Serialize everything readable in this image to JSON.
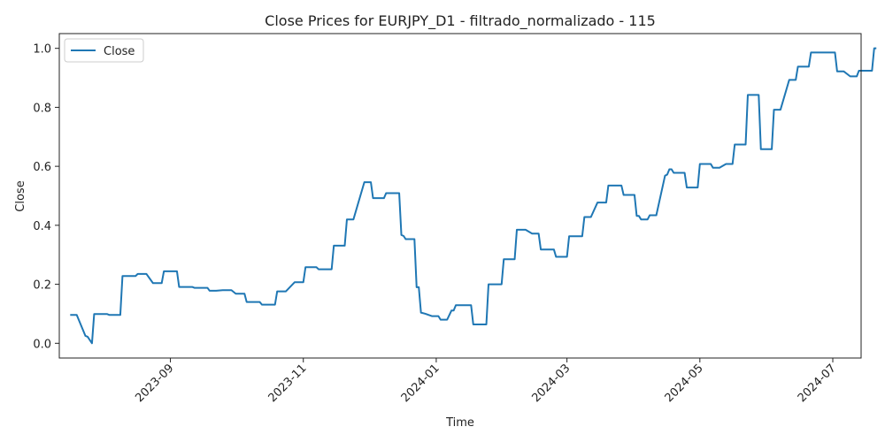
{
  "chart_data": {
    "type": "line",
    "title": "Close Prices for EURJPY_D1 - filtrado_normalizado - 115",
    "xlabel": "Time",
    "ylabel": "Close",
    "xlim": [
      "2023-07-12",
      "2024-07-14"
    ],
    "ylim": [
      -0.05,
      1.05
    ],
    "x_ticks": [
      "2023-09",
      "2023-11",
      "2024-01",
      "2024-03",
      "2024-05",
      "2024-07"
    ],
    "y_ticks": [
      "0.0",
      "0.2",
      "0.4",
      "0.6",
      "0.8",
      "1.0"
    ],
    "grid": false,
    "legend": {
      "placement": "top-left",
      "entries": [
        "Close"
      ]
    },
    "colors": {
      "series": "#1f77b4"
    },
    "series": [
      {
        "name": "Close",
        "points": [
          [
            "2023-07-17",
            0.096
          ],
          [
            "2023-07-20",
            0.096
          ],
          [
            "2023-07-24",
            0.025
          ],
          [
            "2023-07-25",
            0.022
          ],
          [
            "2023-07-27",
            0.0
          ],
          [
            "2023-07-28",
            0.099
          ],
          [
            "2023-08-03",
            0.099
          ],
          [
            "2023-08-04",
            0.096
          ],
          [
            "2023-08-09",
            0.096
          ],
          [
            "2023-08-10",
            0.228
          ],
          [
            "2023-08-16",
            0.228
          ],
          [
            "2023-08-17",
            0.235
          ],
          [
            "2023-08-21",
            0.235
          ],
          [
            "2023-08-24",
            0.204
          ],
          [
            "2023-08-28",
            0.204
          ],
          [
            "2023-08-29",
            0.244
          ],
          [
            "2023-09-04",
            0.244
          ],
          [
            "2023-09-05",
            0.191
          ],
          [
            "2023-09-11",
            0.191
          ],
          [
            "2023-09-12",
            0.188
          ],
          [
            "2023-09-18",
            0.188
          ],
          [
            "2023-09-19",
            0.178
          ],
          [
            "2023-09-22",
            0.178
          ],
          [
            "2023-09-25",
            0.18
          ],
          [
            "2023-09-29",
            0.18
          ],
          [
            "2023-10-01",
            0.168
          ],
          [
            "2023-10-05",
            0.168
          ],
          [
            "2023-10-06",
            0.14
          ],
          [
            "2023-10-12",
            0.14
          ],
          [
            "2023-10-13",
            0.131
          ],
          [
            "2023-10-19",
            0.131
          ],
          [
            "2023-10-20",
            0.176
          ],
          [
            "2023-10-24",
            0.176
          ],
          [
            "2023-10-28",
            0.207
          ],
          [
            "2023-11-01",
            0.207
          ],
          [
            "2023-11-02",
            0.258
          ],
          [
            "2023-11-07",
            0.258
          ],
          [
            "2023-11-08",
            0.251
          ],
          [
            "2023-11-14",
            0.251
          ],
          [
            "2023-11-15",
            0.331
          ],
          [
            "2023-11-20",
            0.331
          ],
          [
            "2023-11-21",
            0.42
          ],
          [
            "2023-11-24",
            0.42
          ],
          [
            "2023-11-29",
            0.546
          ],
          [
            "2023-12-02",
            0.546
          ],
          [
            "2023-12-03",
            0.492
          ],
          [
            "2023-12-08",
            0.492
          ],
          [
            "2023-12-09",
            0.509
          ],
          [
            "2023-12-15",
            0.509
          ],
          [
            "2023-12-16",
            0.367
          ],
          [
            "2023-12-17",
            0.364
          ],
          [
            "2023-12-18",
            0.353
          ],
          [
            "2023-12-22",
            0.353
          ],
          [
            "2023-12-23",
            0.19
          ],
          [
            "2023-12-24",
            0.19
          ],
          [
            "2023-12-25",
            0.104
          ],
          [
            "2023-12-27",
            0.1
          ],
          [
            "2023-12-30",
            0.092
          ],
          [
            "2024-01-02",
            0.092
          ],
          [
            "2024-01-03",
            0.08
          ],
          [
            "2024-01-06",
            0.08
          ],
          [
            "2024-01-08",
            0.111
          ],
          [
            "2024-01-09",
            0.111
          ],
          [
            "2024-01-10",
            0.129
          ],
          [
            "2024-01-17",
            0.129
          ],
          [
            "2024-01-18",
            0.064
          ],
          [
            "2024-01-24",
            0.064
          ],
          [
            "2024-01-25",
            0.2
          ],
          [
            "2024-01-31",
            0.2
          ],
          [
            "2024-02-01",
            0.285
          ],
          [
            "2024-02-06",
            0.285
          ],
          [
            "2024-02-07",
            0.385
          ],
          [
            "2024-02-11",
            0.385
          ],
          [
            "2024-02-14",
            0.372
          ],
          [
            "2024-02-17",
            0.372
          ],
          [
            "2024-02-18",
            0.318
          ],
          [
            "2024-02-24",
            0.318
          ],
          [
            "2024-02-25",
            0.293
          ],
          [
            "2024-03-01",
            0.293
          ],
          [
            "2024-03-02",
            0.363
          ],
          [
            "2024-03-08",
            0.363
          ],
          [
            "2024-03-09",
            0.428
          ],
          [
            "2024-03-12",
            0.428
          ],
          [
            "2024-03-15",
            0.477
          ],
          [
            "2024-03-19",
            0.477
          ],
          [
            "2024-03-20",
            0.535
          ],
          [
            "2024-03-26",
            0.535
          ],
          [
            "2024-03-27",
            0.503
          ],
          [
            "2024-04-01",
            0.503
          ],
          [
            "2024-04-02",
            0.432
          ],
          [
            "2024-04-03",
            0.432
          ],
          [
            "2024-04-04",
            0.42
          ],
          [
            "2024-04-07",
            0.42
          ],
          [
            "2024-04-08",
            0.434
          ],
          [
            "2024-04-11",
            0.434
          ],
          [
            "2024-04-15",
            0.568
          ],
          [
            "2024-04-16",
            0.572
          ],
          [
            "2024-04-17",
            0.59
          ],
          [
            "2024-04-18",
            0.59
          ],
          [
            "2024-04-19",
            0.578
          ],
          [
            "2024-04-24",
            0.578
          ],
          [
            "2024-04-25",
            0.528
          ],
          [
            "2024-04-30",
            0.528
          ],
          [
            "2024-05-01",
            0.608
          ],
          [
            "2024-05-06",
            0.608
          ],
          [
            "2024-05-07",
            0.595
          ],
          [
            "2024-05-10",
            0.595
          ],
          [
            "2024-05-13",
            0.608
          ],
          [
            "2024-05-16",
            0.608
          ],
          [
            "2024-05-17",
            0.674
          ],
          [
            "2024-05-22",
            0.674
          ],
          [
            "2024-05-23",
            0.842
          ],
          [
            "2024-05-28",
            0.842
          ],
          [
            "2024-05-29",
            0.658
          ],
          [
            "2024-06-03",
            0.658
          ],
          [
            "2024-06-04",
            0.792
          ],
          [
            "2024-06-07",
            0.792
          ],
          [
            "2024-06-11",
            0.893
          ],
          [
            "2024-06-14",
            0.893
          ],
          [
            "2024-06-15",
            0.938
          ],
          [
            "2024-06-20",
            0.938
          ],
          [
            "2024-06-21",
            0.986
          ],
          [
            "2024-07-02",
            0.986
          ],
          [
            "2024-07-03",
            0.922
          ],
          [
            "2024-07-06",
            0.922
          ],
          [
            "2024-07-09",
            0.905
          ],
          [
            "2024-07-12",
            0.905
          ],
          [
            "2024-07-13",
            0.924
          ],
          [
            "2024-07-19",
            0.924
          ],
          [
            "2024-07-20",
            1.0
          ],
          [
            "2024-07-21",
            1.0
          ]
        ]
      }
    ]
  }
}
